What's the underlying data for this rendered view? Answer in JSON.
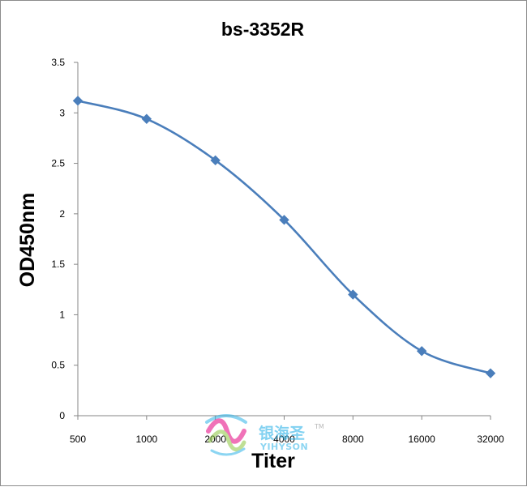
{
  "chart_data": {
    "type": "line",
    "title": "bs-3352R",
    "xlabel": "Titer",
    "ylabel": "OD450nm",
    "categories": [
      "500",
      "1000",
      "2000",
      "4000",
      "8000",
      "16000",
      "32000"
    ],
    "series": [
      {
        "values": [
          3.12,
          2.94,
          2.53,
          1.94,
          1.2,
          0.64,
          0.42
        ],
        "color": "#4A7EBB",
        "marker": "diamond",
        "smooth": true
      }
    ],
    "ylim": [
      0,
      3.5
    ],
    "yticks": [
      "0",
      "0.5",
      "1",
      "1.5",
      "2",
      "2.5",
      "3",
      "3.5"
    ],
    "grid": false,
    "legend": "none"
  },
  "watermark": {
    "icon": "yihyson-logo-icon",
    "name_cn": "银海圣",
    "trademark": "TM",
    "name_en": "YIHYSON",
    "colors": [
      "#2FB4E8",
      "#8CC63F",
      "#E4007F",
      "#8C8C8C"
    ]
  }
}
